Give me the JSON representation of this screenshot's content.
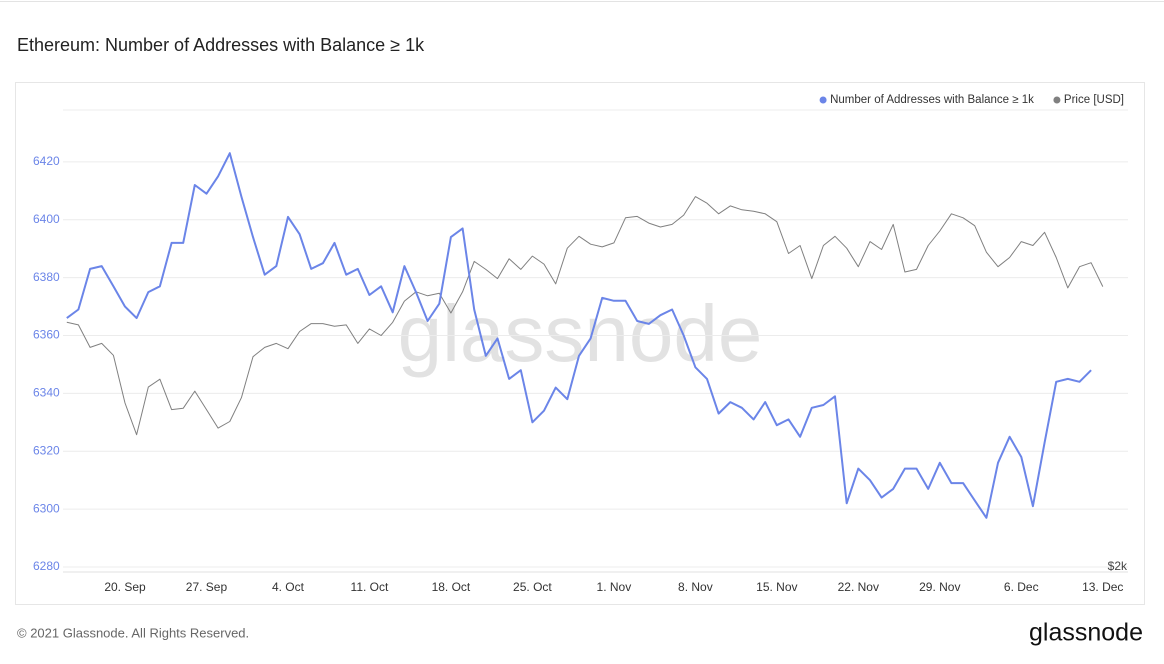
{
  "chart_data": {
    "type": "line",
    "title": "Ethereum: Number of Addresses with Balance ≥ 1k",
    "watermark": "glassnode",
    "categories": [
      null,
      null,
      null,
      null,
      null,
      "20. Sep",
      null,
      null,
      null,
      null,
      null,
      null,
      "27. Sep",
      null,
      null,
      null,
      null,
      null,
      null,
      "4. Oct",
      null,
      null,
      null,
      null,
      null,
      null,
      "11. Oct",
      null,
      null,
      null,
      null,
      null,
      null,
      "18. Oct",
      null,
      null,
      null,
      null,
      null,
      null,
      "25. Oct",
      null,
      null,
      null,
      null,
      null,
      null,
      "1. Nov",
      null,
      null,
      null,
      null,
      null,
      null,
      "8. Nov",
      null,
      null,
      null,
      null,
      null,
      null,
      "15. Nov",
      null,
      null,
      null,
      null,
      null,
      null,
      "22. Nov",
      null,
      null,
      null,
      null,
      null,
      null,
      "29. Nov",
      null,
      null,
      null,
      null,
      null,
      null,
      "6. Dec",
      null,
      null,
      null,
      null,
      null,
      null,
      "13. Dec"
    ],
    "series": [
      {
        "name": "Number of Addresses with Balance ≥ 1k",
        "color": "#6b85e8",
        "values": [
          6366,
          6369,
          6383,
          6384,
          6377,
          6370,
          6366,
          6375,
          6377,
          6392,
          6392,
          6412,
          6409,
          6415,
          6423,
          6408,
          6394,
          6381,
          6384,
          6401,
          6395,
          6383,
          6385,
          6392,
          6381,
          6383,
          6374,
          6377,
          6368,
          6384,
          6375,
          6365,
          6371,
          6394,
          6397,
          6369,
          6353,
          6359,
          6345,
          6348,
          6330,
          6334,
          6342,
          6338,
          6353,
          6359,
          6373,
          6372,
          6372,
          6365,
          6364,
          6367,
          6369,
          6360,
          6349,
          6345,
          6333,
          6337,
          6335,
          6331,
          6337,
          6329,
          6331,
          6325,
          6335,
          6336,
          6339,
          6302,
          6314,
          6310,
          6304,
          6307,
          6314,
          6314,
          6307,
          6316,
          6309,
          6309,
          6303,
          6297,
          6316,
          6325,
          6318,
          6301,
          6323,
          6344,
          6345,
          6344,
          6348,
          null
        ]
      },
      {
        "name": "Price [USD]",
        "color": "#808080",
        "axis": "y2",
        "values": [
          3850,
          3830,
          3660,
          3690,
          3600,
          3240,
          3000,
          3360,
          3420,
          3190,
          3200,
          3330,
          3190,
          3050,
          3100,
          3280,
          3590,
          3660,
          3690,
          3650,
          3780,
          3840,
          3840,
          3820,
          3830,
          3690,
          3800,
          3750,
          3850,
          4010,
          4080,
          4050,
          4070,
          3920,
          4080,
          4310,
          4250,
          4180,
          4330,
          4250,
          4350,
          4290,
          4140,
          4410,
          4500,
          4440,
          4420,
          4450,
          4640,
          4650,
          4600,
          4570,
          4590,
          4660,
          4800,
          4750,
          4670,
          4730,
          4700,
          4690,
          4670,
          4610,
          4370,
          4430,
          4180,
          4430,
          4500,
          4410,
          4270,
          4460,
          4400,
          4590,
          4230,
          4250,
          4430,
          4540,
          4670,
          4640,
          4580,
          4380,
          4270,
          4340,
          4460,
          4430,
          4530,
          4340,
          4110,
          4270,
          4300,
          4120
        ]
      }
    ],
    "ylim": [
      6280,
      6440
    ],
    "yticks": [
      6280,
      6300,
      6320,
      6340,
      6360,
      6380,
      6400,
      6420
    ],
    "y2lim": [
      2000,
      5500
    ],
    "y2ticks": [
      {
        "value": 2000,
        "label": "$2k"
      }
    ],
    "grid": true,
    "legend": "top-right"
  },
  "footer": {
    "copyright": "© 2021 Glassnode. All Rights Reserved.",
    "logo": "glassnode"
  }
}
